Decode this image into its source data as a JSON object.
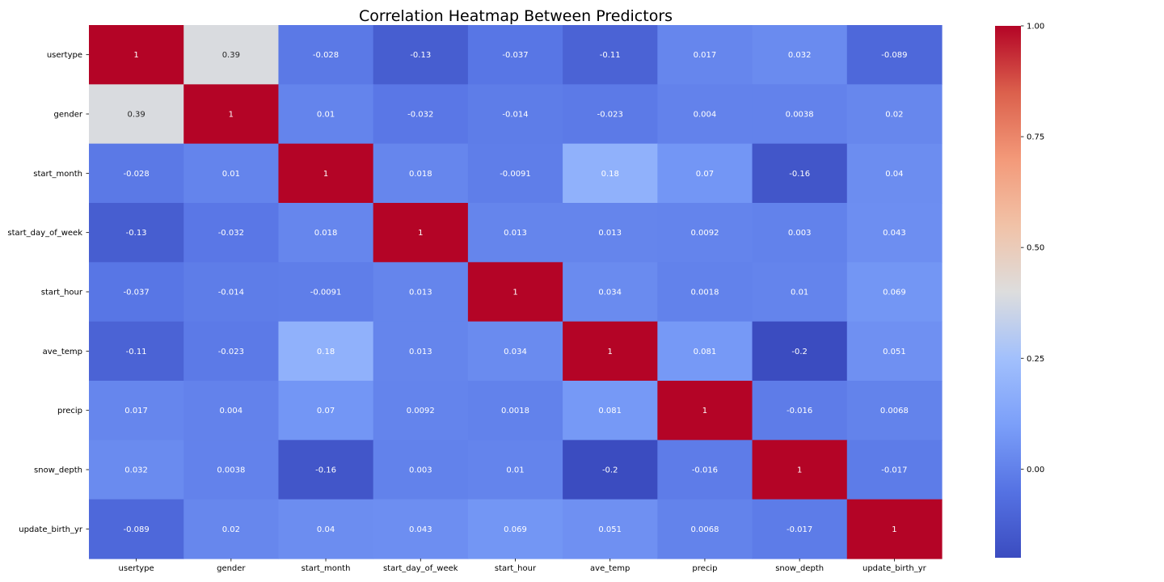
{
  "chart_data": {
    "type": "heatmap",
    "title": "Correlation Heatmap Between Predictors",
    "colormap": "coolwarm",
    "vmin": -0.2,
    "vmax": 1.0,
    "row_labels": [
      "usertype",
      "gender",
      "start_month",
      "start_day_of_week",
      "start_hour",
      "ave_temp",
      "precip",
      "snow_depth",
      "update_birth_yr"
    ],
    "col_labels": [
      "usertype",
      "gender",
      "start_month",
      "start_day_of_week",
      "start_hour",
      "ave_temp",
      "precip",
      "snow_depth",
      "update_birth_yr"
    ],
    "values": [
      [
        1,
        0.39,
        -0.028,
        -0.13,
        -0.037,
        -0.11,
        0.017,
        0.032,
        -0.089
      ],
      [
        0.39,
        1,
        0.01,
        -0.032,
        -0.014,
        -0.023,
        0.004,
        0.0038,
        0.02
      ],
      [
        -0.028,
        0.01,
        1,
        0.018,
        -0.0091,
        0.18,
        0.07,
        -0.16,
        0.04
      ],
      [
        -0.13,
        -0.032,
        0.018,
        1,
        0.013,
        0.013,
        0.0092,
        0.003,
        0.043
      ],
      [
        -0.037,
        -0.014,
        -0.0091,
        0.013,
        1,
        0.034,
        0.0018,
        0.01,
        0.069
      ],
      [
        -0.11,
        -0.023,
        0.18,
        0.013,
        0.034,
        1,
        0.081,
        -0.2,
        0.051
      ],
      [
        0.017,
        0.004,
        0.07,
        0.0092,
        0.0018,
        0.081,
        1,
        -0.016,
        0.0068
      ],
      [
        0.032,
        0.0038,
        -0.16,
        0.003,
        0.01,
        -0.2,
        -0.016,
        1,
        -0.017
      ],
      [
        -0.089,
        0.02,
        0.04,
        0.043,
        0.069,
        0.051,
        0.0068,
        -0.017,
        1
      ]
    ],
    "annotations": [
      [
        "1",
        "0.39",
        "-0.028",
        "-0.13",
        "-0.037",
        "-0.11",
        "0.017",
        "0.032",
        "-0.089"
      ],
      [
        "0.39",
        "1",
        "0.01",
        "-0.032",
        "-0.014",
        "-0.023",
        "0.004",
        "0.0038",
        "0.02"
      ],
      [
        "-0.028",
        "0.01",
        "1",
        "0.018",
        "-0.0091",
        "0.18",
        "0.07",
        "-0.16",
        "0.04"
      ],
      [
        "-0.13",
        "-0.032",
        "0.018",
        "1",
        "0.013",
        "0.013",
        "0.0092",
        "0.003",
        "0.043"
      ],
      [
        "-0.037",
        "-0.014",
        "-0.0091",
        "0.013",
        "1",
        "0.034",
        "0.0018",
        "0.01",
        "0.069"
      ],
      [
        "-0.11",
        "-0.023",
        "0.18",
        "0.013",
        "0.034",
        "1",
        "0.081",
        "-0.2",
        "0.051"
      ],
      [
        "0.017",
        "0.004",
        "0.07",
        "0.0092",
        "0.0018",
        "0.081",
        "1",
        "-0.016",
        "0.0068"
      ],
      [
        "0.032",
        "0.0038",
        "-0.16",
        "0.003",
        "0.01",
        "-0.2",
        "-0.016",
        "1",
        "-0.017"
      ],
      [
        "-0.089",
        "0.02",
        "0.04",
        "0.043",
        "0.069",
        "0.051",
        "0.0068",
        "-0.017",
        "1"
      ]
    ],
    "colorbar": {
      "ticks": [
        0.0,
        0.25,
        0.5,
        0.75,
        1.0
      ],
      "tick_labels": [
        "0.00",
        "0.25",
        "0.50",
        "0.75",
        "1.00"
      ]
    },
    "grid": false,
    "legend": "colorbar-right"
  }
}
